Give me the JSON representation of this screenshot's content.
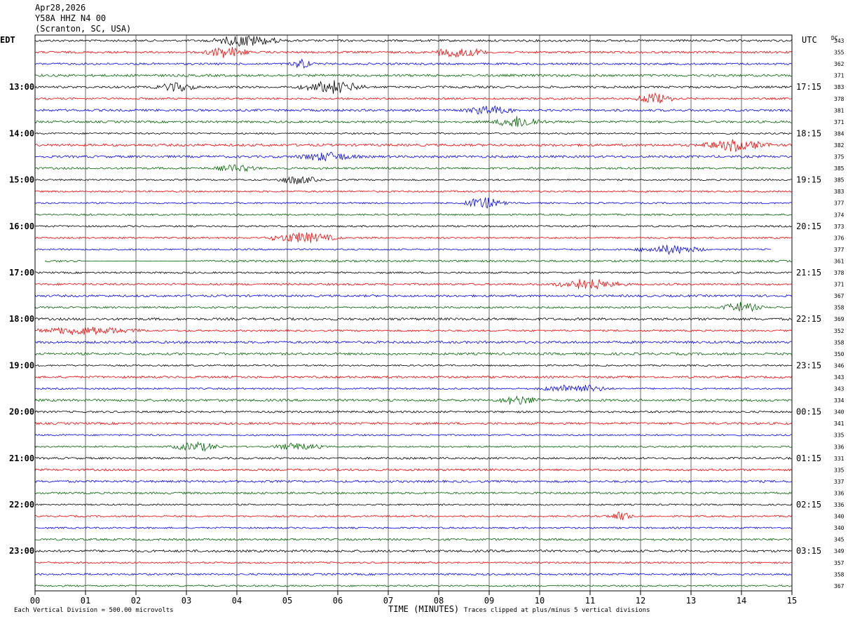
{
  "header": {
    "date": "Apr28,2026",
    "station": "Y58A HHZ N4 00",
    "location": "(Scranton, SC, USA)"
  },
  "footer": {
    "scale_note": "Each Vertical Division =  500.00 microvolts",
    "clip_note": "Traces clipped at plus/minus 5 vertical divisions"
  },
  "chart_data": {
    "type": "line",
    "title": "",
    "xlabel": "TIME (MINUTES)",
    "left_axis_label": "EDT",
    "right_axis_label": "UTC",
    "dc_label": "DC",
    "xlim": [
      0,
      15
    ],
    "x_ticks": [
      "00",
      "01",
      "02",
      "03",
      "04",
      "05",
      "06",
      "07",
      "08",
      "09",
      "10",
      "11",
      "12",
      "13",
      "14",
      "15"
    ],
    "grid": true,
    "trace_colors": [
      "#000000",
      "#ff0000",
      "#0000ff",
      "#006400"
    ],
    "left_hour_labels": [
      "13:00",
      "14:00",
      "15:00",
      "16:00",
      "17:00",
      "18:00",
      "19:00",
      "20:00",
      "21:00",
      "22:00",
      "23:00"
    ],
    "right_hour_labels": [
      "17:15",
      "18:15",
      "19:15",
      "20:15",
      "21:15",
      "22:15",
      "23:15",
      "00:15",
      "01:15",
      "02:15",
      "03:15"
    ],
    "dc_offsets": [
      343,
      355,
      362,
      371,
      383,
      378,
      381,
      371,
      384,
      382,
      375,
      385,
      385,
      383,
      377,
      374,
      373,
      376,
      377,
      361,
      378,
      371,
      367,
      358,
      369,
      352,
      358,
      350,
      346,
      343,
      343,
      334,
      340,
      341,
      335,
      336,
      331,
      335,
      337,
      336,
      336,
      340,
      340,
      345,
      349,
      357,
      358,
      367
    ],
    "trace_count": 48
  }
}
